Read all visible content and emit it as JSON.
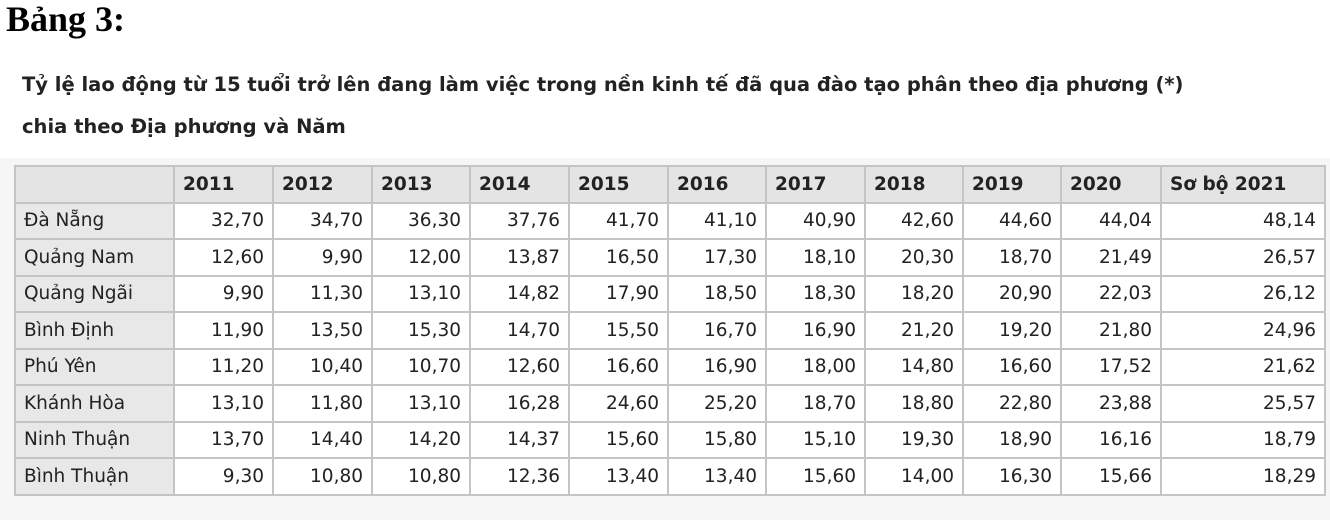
{
  "heading": "Bảng 3:",
  "subtitle_line1": "Tỷ lệ lao động từ 15 tuổi trở lên đang làm việc trong nền kinh tế đã qua đào tạo phân theo địa phương (*)",
  "subtitle_line2": "chia theo Địa phương và Năm",
  "table": {
    "columns": [
      "",
      "2011",
      "2012",
      "2013",
      "2014",
      "2015",
      "2016",
      "2017",
      "2018",
      "2019",
      "2020",
      "Sơ bộ 2021"
    ],
    "rows": [
      {
        "name": "Đà Nẵng",
        "values": [
          "32,70",
          "34,70",
          "36,30",
          "37,76",
          "41,70",
          "41,10",
          "40,90",
          "42,60",
          "44,60",
          "44,04",
          "48,14"
        ]
      },
      {
        "name": "Quảng Nam",
        "values": [
          "12,60",
          "9,90",
          "12,00",
          "13,87",
          "16,50",
          "17,30",
          "18,10",
          "20,30",
          "18,70",
          "21,49",
          "26,57"
        ]
      },
      {
        "name": "Quảng Ngãi",
        "values": [
          "9,90",
          "11,30",
          "13,10",
          "14,82",
          "17,90",
          "18,50",
          "18,30",
          "18,20",
          "20,90",
          "22,03",
          "26,12"
        ]
      },
      {
        "name": "Bình Định",
        "values": [
          "11,90",
          "13,50",
          "15,30",
          "14,70",
          "15,50",
          "16,70",
          "16,90",
          "21,20",
          "19,20",
          "21,80",
          "24,96"
        ]
      },
      {
        "name": "Phú Yên",
        "values": [
          "11,20",
          "10,40",
          "10,70",
          "12,60",
          "16,60",
          "16,90",
          "18,00",
          "14,80",
          "16,60",
          "17,52",
          "21,62"
        ]
      },
      {
        "name": "Khánh Hòa",
        "values": [
          "13,10",
          "11,80",
          "13,10",
          "16,28",
          "24,60",
          "25,20",
          "18,70",
          "18,80",
          "22,80",
          "23,88",
          "25,57"
        ]
      },
      {
        "name": "Ninh Thuận",
        "values": [
          "13,70",
          "14,40",
          "14,20",
          "14,37",
          "15,60",
          "15,80",
          "15,10",
          "19,30",
          "18,90",
          "16,16",
          "18,79"
        ]
      },
      {
        "name": "Bình Thuận",
        "values": [
          "9,30",
          "10,80",
          "10,80",
          "12,36",
          "13,40",
          "13,40",
          "15,60",
          "14,00",
          "16,30",
          "15,66",
          "18,29"
        ]
      }
    ]
  }
}
